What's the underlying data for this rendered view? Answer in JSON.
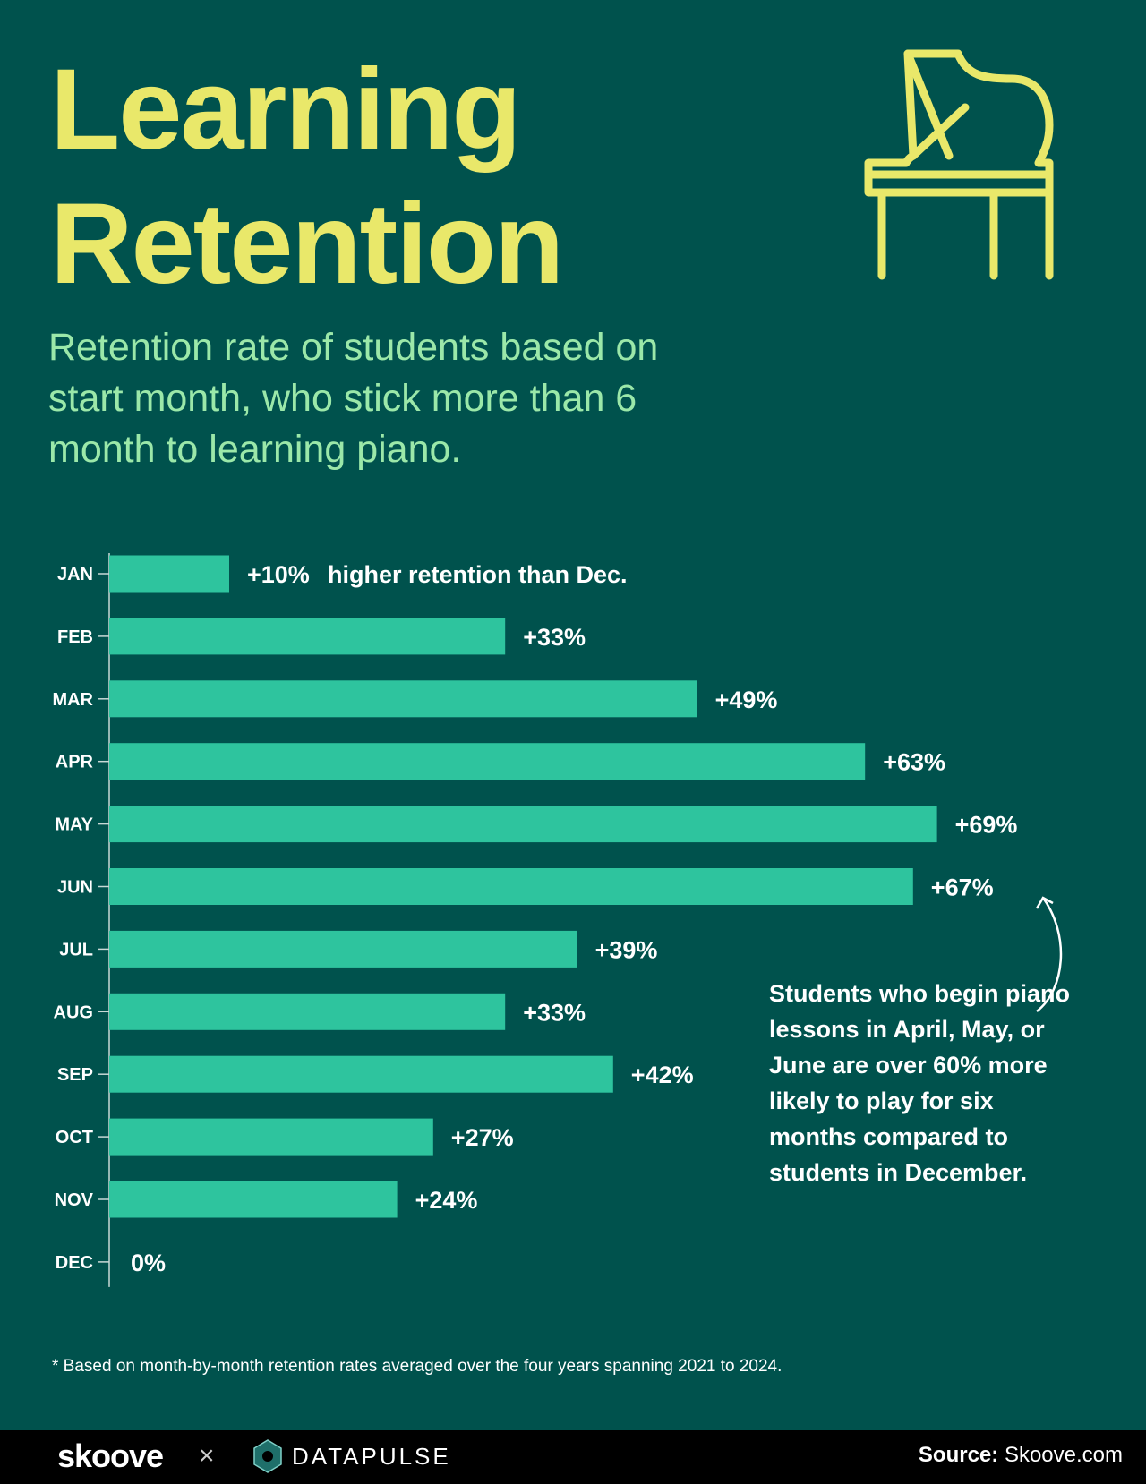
{
  "title_lines": [
    "Learning",
    "Retention"
  ],
  "subtitle": "Retention rate of students based on start month, who stick more than 6 month to learning piano.",
  "icon": "grand-piano-icon",
  "colors": {
    "background": "#00524d",
    "bar": "#2ec49e",
    "title": "#e9e86a",
    "subtitle": "#9be8a9",
    "footer": "#000000"
  },
  "chart_data": {
    "type": "bar",
    "orientation": "horizontal",
    "categories": [
      "JAN",
      "FEB",
      "MAR",
      "APR",
      "MAY",
      "JUN",
      "JUL",
      "AUG",
      "SEP",
      "OCT",
      "NOV",
      "DEC"
    ],
    "values": [
      10,
      33,
      49,
      63,
      69,
      67,
      39,
      33,
      42,
      27,
      24,
      0
    ],
    "data_labels": [
      "+10%",
      "+33%",
      "+49%",
      "+63%",
      "+69%",
      "+67%",
      "+39%",
      "+33%",
      "+42%",
      "+27%",
      "+24%",
      "0%"
    ],
    "first_label_suffix": "higher retention than Dec.",
    "unit": "%",
    "grid": false
  },
  "annotation": "Students who begin piano lessons in April, May, or June are over 60% more likely to play for six months compared to students in December.",
  "footnote": "*  Based on month-by-month retention rates averaged over the four years spanning 2021 to 2024.",
  "footer": {
    "brand1": "skoove",
    "separator": "×",
    "brand2": "DATAPULSE",
    "source_label": "Source:",
    "source_value": "Skoove.com"
  }
}
